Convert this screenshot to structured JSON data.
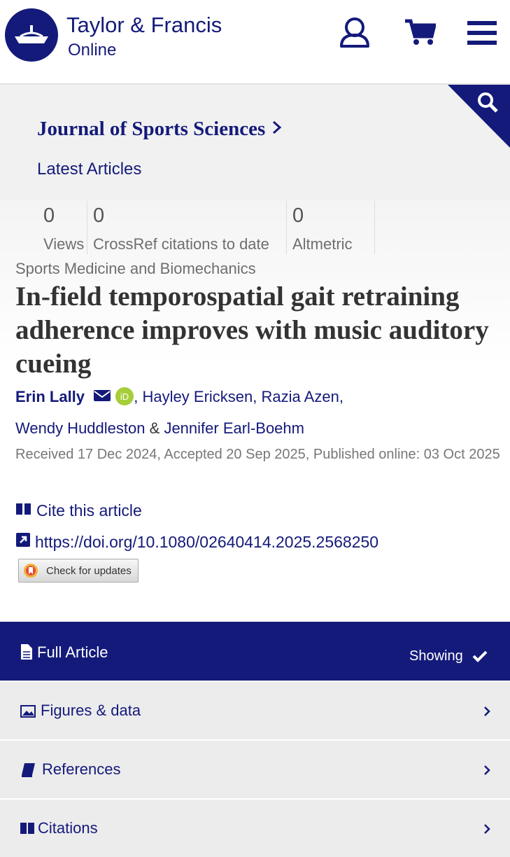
{
  "header": {
    "brand": "Taylor & Francis",
    "sub": "Online"
  },
  "journal": {
    "name": "Journal of Sports Sciences",
    "section": "Latest Articles"
  },
  "metrics": [
    {
      "value": 0,
      "label": "Views"
    },
    {
      "value": 0,
      "label": "CrossRef citations to date"
    },
    {
      "value": 0,
      "label": "Altmetric"
    }
  ],
  "article": {
    "category": "Sports Medicine and Biomechanics",
    "title": "In-field temporospatial gait retraining adherence improves with music auditory cueing",
    "authors": [
      "Erin Lally",
      "Hayley Ericksen",
      "Razia Azen",
      "Wendy Huddleston",
      "Jennifer Earl-Boehm"
    ],
    "separator": ",",
    "conjunction": "&",
    "dates": "Received 17 Dec 2024, Accepted 20 Sep 2025, Published online: 03 Oct 2025",
    "cite": "Cite this article",
    "doi": "https://doi.org/10.1080/02640414.2025.2568250",
    "updates": "Check for updates"
  },
  "tabs": [
    {
      "label": "Full Article",
      "status": "Showing"
    },
    {
      "label": "Figures & data"
    },
    {
      "label": "References"
    },
    {
      "label": "Citations"
    }
  ]
}
